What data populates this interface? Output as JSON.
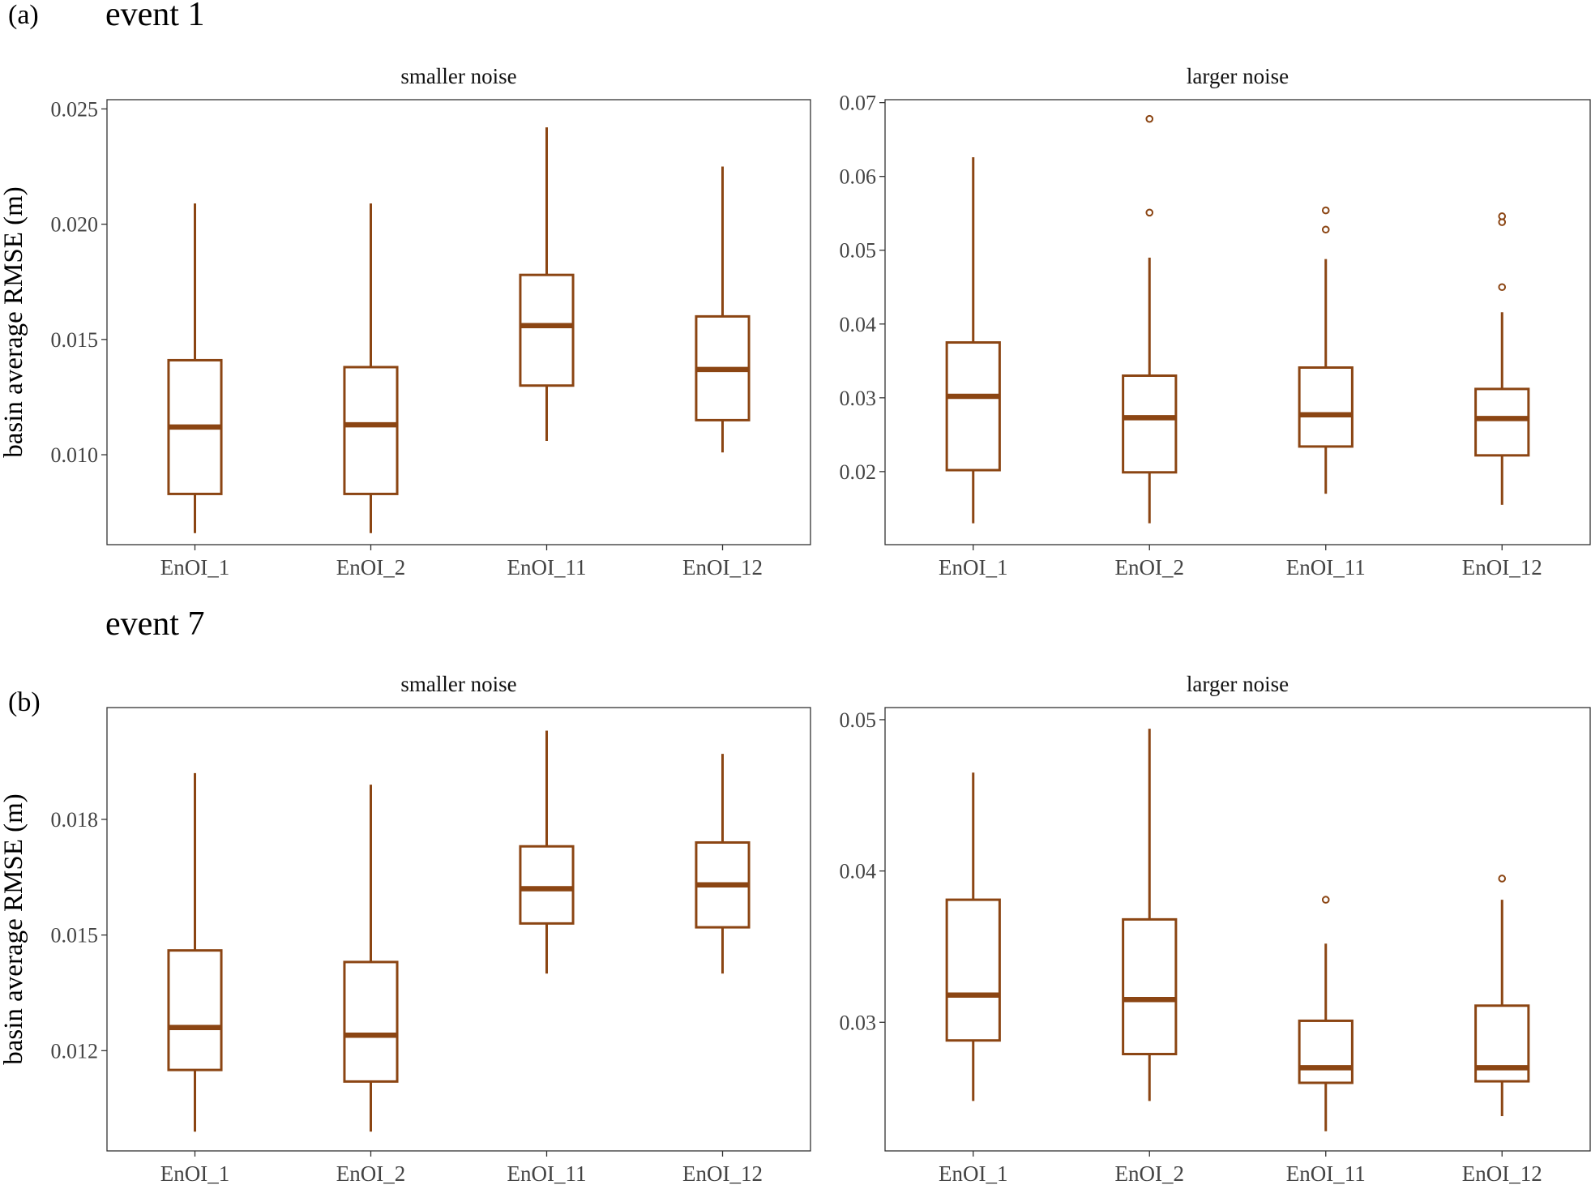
{
  "figure": {
    "panel_a_label": "(a)",
    "panel_a_title": "event 1",
    "panel_b_label": "(b)",
    "panel_b_title": "event 7",
    "box_color": "#8B4513"
  },
  "chart_data": [
    {
      "id": "a-left",
      "type": "box",
      "title": "smaller noise",
      "ylabel": "basin average RMSE (m)",
      "categories": [
        "EnOI_1",
        "EnOI_2",
        "EnOI_11",
        "EnOI_12"
      ],
      "ylim": [
        0.0061,
        0.0254
      ],
      "yticks": [
        0.01,
        0.015,
        0.02,
        0.025
      ],
      "ytick_labels": [
        "0.010",
        "0.015",
        "0.020",
        "0.025"
      ],
      "boxes": [
        {
          "whisker_low": 0.0066,
          "q1": 0.0083,
          "median": 0.0112,
          "q3": 0.0141,
          "whisker_high": 0.0209,
          "outliers": []
        },
        {
          "whisker_low": 0.0066,
          "q1": 0.0083,
          "median": 0.0113,
          "q3": 0.0138,
          "whisker_high": 0.0209,
          "outliers": []
        },
        {
          "whisker_low": 0.0106,
          "q1": 0.013,
          "median": 0.0156,
          "q3": 0.0178,
          "whisker_high": 0.0242,
          "outliers": []
        },
        {
          "whisker_low": 0.0101,
          "q1": 0.0115,
          "median": 0.0137,
          "q3": 0.016,
          "whisker_high": 0.0225,
          "outliers": []
        }
      ]
    },
    {
      "id": "a-right",
      "type": "box",
      "title": "larger noise",
      "categories": [
        "EnOI_1",
        "EnOI_2",
        "EnOI_11",
        "EnOI_12"
      ],
      "ylim": [
        0.0101,
        0.0704
      ],
      "yticks": [
        0.02,
        0.03,
        0.04,
        0.05,
        0.06,
        0.07
      ],
      "ytick_labels": [
        "0.02",
        "0.03",
        "0.04",
        "0.05",
        "0.06",
        "0.07"
      ],
      "boxes": [
        {
          "whisker_low": 0.013,
          "q1": 0.0202,
          "median": 0.0302,
          "q3": 0.0375,
          "whisker_high": 0.0626,
          "outliers": []
        },
        {
          "whisker_low": 0.013,
          "q1": 0.0199,
          "median": 0.0273,
          "q3": 0.033,
          "whisker_high": 0.049,
          "outliers": [
            0.0551,
            0.0678
          ]
        },
        {
          "whisker_low": 0.017,
          "q1": 0.0234,
          "median": 0.0277,
          "q3": 0.0341,
          "whisker_high": 0.0488,
          "outliers": [
            0.0528,
            0.0554
          ]
        },
        {
          "whisker_low": 0.0155,
          "q1": 0.0222,
          "median": 0.0272,
          "q3": 0.0312,
          "whisker_high": 0.0416,
          "outliers": [
            0.045,
            0.0538,
            0.0546
          ]
        }
      ]
    },
    {
      "id": "b-left",
      "type": "box",
      "title": "smaller noise",
      "ylabel": "basin average RMSE (m)",
      "categories": [
        "EnOI_1",
        "EnOI_2",
        "EnOI_11",
        "EnOI_12"
      ],
      "ylim": [
        0.0094,
        0.0209
      ],
      "yticks": [
        0.012,
        0.015,
        0.018
      ],
      "ytick_labels": [
        "0.012",
        "0.015",
        "0.018"
      ],
      "boxes": [
        {
          "whisker_low": 0.0099,
          "q1": 0.0115,
          "median": 0.0126,
          "q3": 0.0146,
          "whisker_high": 0.0192,
          "outliers": []
        },
        {
          "whisker_low": 0.0099,
          "q1": 0.0112,
          "median": 0.0124,
          "q3": 0.0143,
          "whisker_high": 0.0189,
          "outliers": []
        },
        {
          "whisker_low": 0.014,
          "q1": 0.0153,
          "median": 0.0162,
          "q3": 0.0173,
          "whisker_high": 0.0203,
          "outliers": []
        },
        {
          "whisker_low": 0.014,
          "q1": 0.0152,
          "median": 0.0163,
          "q3": 0.0174,
          "whisker_high": 0.0197,
          "outliers": []
        }
      ]
    },
    {
      "id": "b-right",
      "type": "box",
      "title": "larger noise",
      "categories": [
        "EnOI_1",
        "EnOI_2",
        "EnOI_11",
        "EnOI_12"
      ],
      "ylim": [
        0.0215,
        0.0508
      ],
      "yticks": [
        0.03,
        0.04,
        0.05
      ],
      "ytick_labels": [
        "0.03",
        "0.04",
        "0.05"
      ],
      "boxes": [
        {
          "whisker_low": 0.0248,
          "q1": 0.0288,
          "median": 0.0318,
          "q3": 0.0381,
          "whisker_high": 0.0465,
          "outliers": []
        },
        {
          "whisker_low": 0.0248,
          "q1": 0.0279,
          "median": 0.0315,
          "q3": 0.0368,
          "whisker_high": 0.0494,
          "outliers": []
        },
        {
          "whisker_low": 0.0228,
          "q1": 0.026,
          "median": 0.027,
          "q3": 0.0301,
          "whisker_high": 0.0352,
          "outliers": [
            0.0381
          ]
        },
        {
          "whisker_low": 0.0238,
          "q1": 0.0261,
          "median": 0.027,
          "q3": 0.0311,
          "whisker_high": 0.0381,
          "outliers": [
            0.0395
          ]
        }
      ]
    }
  ]
}
